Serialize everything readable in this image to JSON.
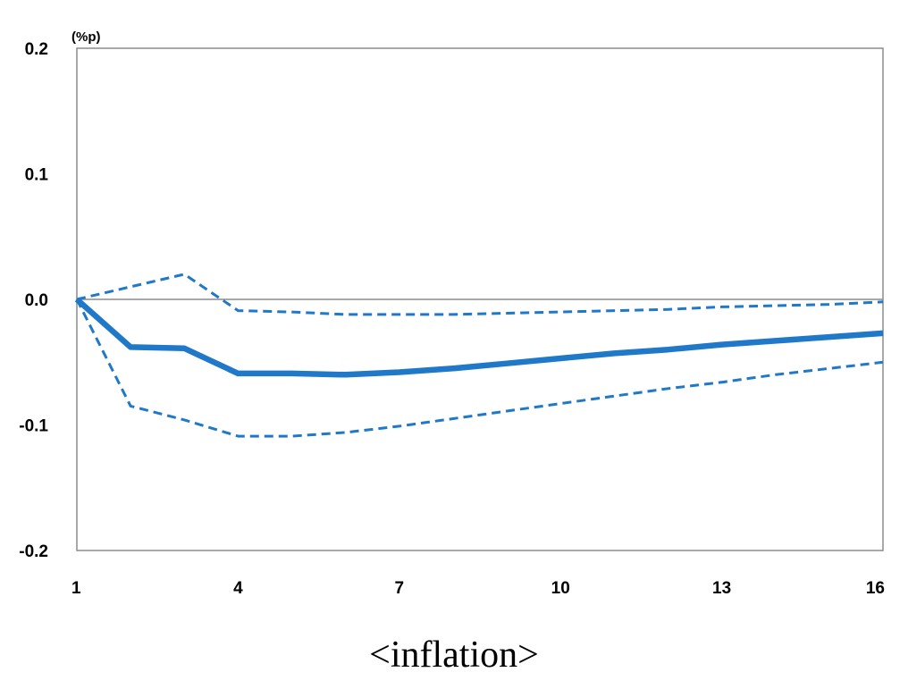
{
  "chart_data": {
    "type": "line",
    "unit_label": "(%p)",
    "x": [
      1,
      2,
      3,
      4,
      5,
      6,
      7,
      8,
      9,
      10,
      11,
      12,
      13,
      14,
      15,
      16
    ],
    "xticks": [
      1,
      4,
      7,
      10,
      13,
      16
    ],
    "xlim": [
      1,
      16
    ],
    "yticks": [
      0.2,
      0.1,
      0.0,
      -0.1,
      -0.2
    ],
    "ytick_labels": [
      "0.2",
      "0.1",
      "0.0",
      "-0.1",
      "-0.2"
    ],
    "ylim": [
      -0.2,
      0.2
    ],
    "zero_line": true,
    "grid": false,
    "series": [
      {
        "style": "solid",
        "color": "#1f78c8",
        "values": [
          0.0,
          -0.038,
          -0.039,
          -0.059,
          -0.059,
          -0.06,
          -0.058,
          -0.055,
          -0.051,
          -0.047,
          -0.043,
          -0.04,
          -0.036,
          -0.033,
          -0.03,
          -0.027
        ]
      },
      {
        "style": "dashed",
        "color": "#1f78c8",
        "values": [
          0.0,
          0.01,
          0.02,
          -0.009,
          -0.01,
          -0.012,
          -0.012,
          -0.012,
          -0.011,
          -0.01,
          -0.009,
          -0.008,
          -0.006,
          -0.005,
          -0.004,
          -0.002
        ]
      },
      {
        "style": "dashed",
        "color": "#1f78c8",
        "values": [
          0.0,
          -0.085,
          -0.096,
          -0.109,
          -0.109,
          -0.106,
          -0.101,
          -0.095,
          -0.089,
          -0.083,
          -0.077,
          -0.071,
          -0.066,
          -0.06,
          -0.055,
          -0.05
        ]
      }
    ]
  },
  "caption": "<inflation>"
}
